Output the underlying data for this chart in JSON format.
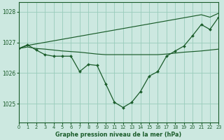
{
  "title": "Graphe pression niveau de la mer (hPa)",
  "background_color": "#cce8e0",
  "grid_color": "#99ccbb",
  "line_color": "#1a5c2a",
  "xlim": [
    0,
    23
  ],
  "ylim": [
    1024.4,
    1028.3
  ],
  "yticks": [
    1025,
    1026,
    1027,
    1028
  ],
  "xticks": [
    0,
    1,
    2,
    3,
    4,
    5,
    6,
    7,
    8,
    9,
    10,
    11,
    12,
    13,
    14,
    15,
    16,
    17,
    18,
    19,
    20,
    21,
    22,
    23
  ],
  "line_flat": [
    1026.8,
    1026.85,
    1026.8,
    1026.78,
    1026.75,
    1026.72,
    1026.7,
    1026.68,
    1026.65,
    1026.62,
    1026.6,
    1026.6,
    1026.6,
    1026.6,
    1026.6,
    1026.6,
    1026.6,
    1026.62,
    1026.65,
    1026.68,
    1026.7,
    1026.72,
    1026.75,
    1026.78
  ],
  "line_rising": [
    1026.8,
    1026.9,
    1026.95,
    1027.0,
    1027.05,
    1027.1,
    1027.15,
    1027.2,
    1027.25,
    1027.3,
    1027.35,
    1027.4,
    1027.45,
    1027.5,
    1027.55,
    1027.6,
    1027.65,
    1027.7,
    1027.75,
    1027.8,
    1027.85,
    1027.9,
    1027.82,
    1027.95
  ],
  "line_main": [
    1026.8,
    1026.92,
    1026.75,
    1026.6,
    1026.55,
    1026.55,
    1026.55,
    1026.05,
    1026.28,
    1026.25,
    1025.65,
    1025.05,
    1024.88,
    1025.05,
    1025.4,
    1025.9,
    1026.05,
    1026.55,
    1026.72,
    1026.88,
    1027.22,
    1027.58,
    1027.42,
    1027.82
  ]
}
